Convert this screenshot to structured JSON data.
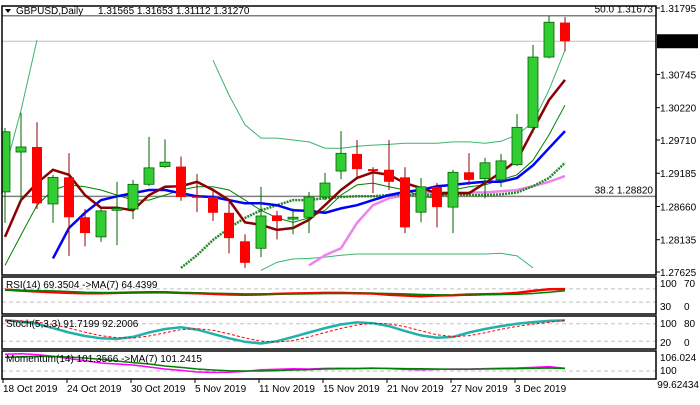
{
  "header": {
    "symbol": "GBPUSD,Daily",
    "ohlc": "1.31565 1.31653 1.31112 1.31270"
  },
  "colors": {
    "bull": "#32CD32",
    "bull_edge": "#006400",
    "bear": "#FF0000",
    "bear_edge": "#8B0000",
    "ma_fast": "#8B0000",
    "ma_mid": "#0000FF",
    "ma_thin": "#008000",
    "ma_slow": "#228B22",
    "ma_slowest": "#EE82EE",
    "bands": "#3CB371",
    "rsi": "#FF0000",
    "rsi_ma": "#008000",
    "stoch_main": "#20B2AA",
    "stoch_signal": "#FF0000",
    "momentum": "#FF00FF",
    "momentum_ma": "#008000"
  },
  "chart_data": [
    {
      "type": "candlestick",
      "title": "GBPUSD,Daily",
      "ylim": [
        1.27625,
        1.31795
      ],
      "y_ticks": [
        "1.31795",
        "1.30745",
        "1.30220",
        "1.29710",
        "1.29185",
        "1.28660",
        "1.28135",
        "1.27625"
      ],
      "current_price": "1.31270",
      "fib_levels": [
        {
          "label": "50.0 1.31673",
          "value": 1.31673
        },
        {
          "label": "38.2 1.28820",
          "value": 1.2882
        }
      ],
      "x_ticks": [
        {
          "bar": 0,
          "label": "18 Oct 2019"
        },
        {
          "bar": 4,
          "label": "24 Oct 2019"
        },
        {
          "bar": 8,
          "label": "30 Oct 2019"
        },
        {
          "bar": 12,
          "label": "5 Nov 2019"
        },
        {
          "bar": 16,
          "label": "11 Nov 2019"
        },
        {
          "bar": 20,
          "label": "15 Nov 2019"
        },
        {
          "bar": 24,
          "label": "21 Nov 2019"
        },
        {
          "bar": 28,
          "label": "27 Nov 2019"
        },
        {
          "bar": 32,
          "label": "3 Dec 2019"
        }
      ],
      "ohlc": [
        [
          1.2889,
          1.299,
          1.284,
          1.2984
        ],
        [
          1.2952,
          1.3014,
          1.2873,
          1.296
        ],
        [
          1.296,
          1.2999,
          1.2862,
          1.2871
        ],
        [
          1.287,
          1.2916,
          1.284,
          1.2912
        ],
        [
          1.2912,
          1.295,
          1.2788,
          1.2849
        ],
        [
          1.2849,
          1.2862,
          1.2803,
          1.2824
        ],
        [
          1.2818,
          1.2862,
          1.281,
          1.2859
        ],
        [
          1.286,
          1.2905,
          1.2805,
          1.2863
        ],
        [
          1.2862,
          1.2908,
          1.2846,
          1.2901
        ],
        [
          1.2901,
          1.2976,
          1.2898,
          1.2927
        ],
        [
          1.2929,
          1.2972,
          1.2927,
          1.2936
        ],
        [
          1.2929,
          1.2945,
          1.2875,
          1.2881
        ],
        [
          1.2882,
          1.2917,
          1.2857,
          1.2881
        ],
        [
          1.2881,
          1.2895,
          1.2843,
          1.2856
        ],
        [
          1.2856,
          1.2876,
          1.2792,
          1.2816
        ],
        [
          1.2811,
          1.2822,
          1.2769,
          1.2777
        ],
        [
          1.28,
          1.2897,
          1.2786,
          1.2851
        ],
        [
          1.2852,
          1.2859,
          1.2814,
          1.2843
        ],
        [
          1.2846,
          1.2863,
          1.2822,
          1.2849
        ],
        [
          1.2849,
          1.2889,
          1.2824,
          1.2881
        ],
        [
          1.2881,
          1.2919,
          1.2876,
          1.2903
        ],
        [
          1.2922,
          1.2985,
          1.2909,
          1.295
        ],
        [
          1.2949,
          1.2971,
          1.2911,
          1.2925
        ],
        [
          1.2925,
          1.2928,
          1.2887,
          1.2922
        ],
        [
          1.2924,
          1.2971,
          1.2892,
          1.2905
        ],
        [
          1.2912,
          1.2928,
          1.2824,
          1.2833
        ],
        [
          1.2857,
          1.2911,
          1.2841,
          1.2897
        ],
        [
          1.2897,
          1.2903,
          1.2833,
          1.2865
        ],
        [
          1.2865,
          1.2924,
          1.2824,
          1.292
        ],
        [
          1.292,
          1.295,
          1.29,
          1.2908
        ],
        [
          1.291,
          1.2943,
          1.2879,
          1.2935
        ],
        [
          1.2908,
          1.2949,
          1.2897,
          1.2938
        ],
        [
          1.2932,
          1.3012,
          1.293,
          1.2991
        ],
        [
          1.2991,
          1.3121,
          1.2982,
          1.3102
        ],
        [
          1.3102,
          1.3167,
          1.31,
          1.3157
        ],
        [
          1.31565,
          1.31653,
          1.31112,
          1.3127
        ]
      ],
      "lines": {
        "ma_fast": [
          1.2818,
          1.2876,
          1.2903,
          1.2924,
          1.2916,
          1.2884,
          1.2864,
          1.2864,
          1.286,
          1.2884,
          1.2897,
          1.2898,
          1.2905,
          1.2892,
          1.2876,
          1.2841,
          1.2837,
          1.2829,
          1.2832,
          1.2845,
          1.2868,
          1.2892,
          1.2911,
          1.292,
          1.2916,
          1.2903,
          1.2895,
          1.2887,
          1.2887,
          1.2887,
          1.2903,
          1.292,
          1.2939,
          1.2987,
          1.3034,
          1.3066
        ],
        "ma_mid": [
          null,
          null,
          null,
          1.2784,
          1.2832,
          1.2856,
          1.2876,
          1.2882,
          1.2887,
          1.2892,
          1.2892,
          1.2887,
          1.2882,
          1.2881,
          1.2876,
          1.2871,
          1.2871,
          1.2868,
          1.286,
          1.2859,
          1.2856,
          1.2863,
          1.2868,
          1.2876,
          1.2884,
          1.2889,
          1.2892,
          1.2898,
          1.29,
          1.2903,
          1.2905,
          1.2905,
          1.2911,
          1.2931,
          1.2958,
          1.2985
        ],
        "ma_thin": [
          1.2773,
          1.2821,
          1.2868,
          1.2892,
          1.29,
          1.2897,
          1.2892,
          1.2884,
          1.2876,
          1.2876,
          1.2884,
          1.2892,
          1.2897,
          1.2897,
          1.2892,
          1.2876,
          1.286,
          1.2848,
          1.2841,
          1.2848,
          1.286,
          1.2884,
          1.29,
          1.2903,
          1.2897,
          1.2892,
          1.2882,
          1.2879,
          1.2892,
          1.2897,
          1.29,
          1.2908,
          1.2916,
          1.2939,
          1.2979,
          1.3026
        ],
        "ma_slow": [
          null,
          null,
          null,
          null,
          null,
          null,
          null,
          null,
          null,
          null,
          null,
          1.2769,
          1.2789,
          1.2813,
          1.2832,
          1.2848,
          1.286,
          1.2868,
          1.2876,
          1.2876,
          1.2879,
          1.2881,
          1.2882,
          1.2882,
          1.2884,
          1.2884,
          1.2884,
          1.2884,
          1.2884,
          1.2884,
          1.2884,
          1.2885,
          1.2888,
          1.2898,
          1.2911,
          1.2935
        ],
        "ma_slowest": [
          null,
          null,
          null,
          null,
          null,
          null,
          null,
          null,
          null,
          null,
          null,
          null,
          null,
          null,
          null,
          null,
          null,
          null,
          null,
          1.2773,
          1.2789,
          1.28,
          1.284,
          1.2868,
          1.2879,
          1.2884,
          1.2887,
          1.2888,
          1.2888,
          1.2888,
          1.2888,
          1.289,
          1.2892,
          1.2898,
          1.2905,
          1.2914
        ],
        "band_upper": [
          1.2924,
          1.3018,
          1.3129,
          null,
          null,
          null,
          null,
          null,
          null,
          null,
          null,
          null,
          null,
          1.3097,
          1.3042,
          1.2995,
          1.2974,
          1.2974,
          1.2971,
          1.2968,
          1.2958,
          1.2958,
          1.2961,
          1.2963,
          1.2964,
          1.2966,
          1.2966,
          1.2966,
          1.2968,
          1.2968,
          1.2966,
          1.2969,
          1.2979,
          1.2999,
          1.305,
          1.3113
        ],
        "band_lower": [
          null,
          null,
          null,
          null,
          null,
          null,
          null,
          null,
          null,
          null,
          null,
          null,
          null,
          null,
          null,
          null,
          1.2765,
          1.2778,
          1.2783,
          1.2784,
          1.2786,
          1.2789,
          1.2791,
          1.2791,
          1.2791,
          1.2791,
          1.2791,
          1.2791,
          1.2791,
          1.2791,
          1.2791,
          1.2792,
          1.2788,
          1.2769,
          null,
          null
        ]
      }
    },
    {
      "type": "line",
      "title": "RSI(14) 69.3504  ->MA(7) 64.4399",
      "ylim": [
        0,
        100
      ],
      "y_ticks": [
        "100",
        "70",
        "30",
        "0"
      ],
      "levels": [
        70,
        30
      ],
      "series": [
        {
          "name": "RSI(14)",
          "values": [
            68,
            65,
            62,
            60,
            58,
            57,
            57,
            58,
            59,
            60,
            60,
            58,
            57,
            55,
            53,
            52,
            53,
            55,
            56,
            57,
            58,
            58,
            57,
            56,
            52,
            50,
            48,
            50,
            51,
            53,
            54,
            55,
            58,
            64,
            69,
            69.35
          ]
        },
        {
          "name": "MA(7)",
          "values": [
            66,
            66,
            65,
            64,
            62,
            60,
            59,
            58,
            58,
            58,
            58,
            58,
            58,
            57,
            56,
            55,
            55,
            55,
            55,
            55,
            56,
            56,
            57,
            57,
            56,
            55,
            53,
            52,
            51,
            51,
            52,
            53,
            54,
            56,
            60,
            64.44
          ]
        }
      ]
    },
    {
      "type": "line",
      "title": "Stoch(5,3,3) 91.7199 92.2006",
      "ylim": [
        0,
        100
      ],
      "y_ticks": [
        "100",
        "80",
        "20",
        "0"
      ],
      "levels": [
        80,
        20
      ],
      "series": [
        {
          "name": "main",
          "values": [
            92,
            88,
            80,
            65,
            50,
            38,
            30,
            28,
            35,
            50,
            62,
            68,
            60,
            45,
            30,
            18,
            12,
            20,
            35,
            50,
            65,
            78,
            85,
            82,
            72,
            55,
            40,
            32,
            35,
            50,
            62,
            72,
            80,
            86,
            90,
            91.72
          ]
        },
        {
          "name": "signal",
          "values": [
            90,
            90,
            86,
            78,
            65,
            51,
            39,
            32,
            31,
            38,
            49,
            60,
            63,
            58,
            45,
            31,
            20,
            17,
            22,
            35,
            50,
            64,
            76,
            82,
            80,
            70,
            56,
            42,
            36,
            39,
            49,
            61,
            71,
            79,
            85,
            92.2
          ]
        }
      ]
    },
    {
      "type": "line",
      "title": "Momentum(14) 101.3566  ->MA(7) 101.2415",
      "ylim": [
        97,
        109
      ],
      "y_ticks": [
        "106.024",
        "100",
        "99.62434"
      ],
      "levels": [
        100
      ],
      "series": [
        {
          "name": "Momentum(14)",
          "values": [
            108.4,
            108.6,
            108.2,
            107.4,
            106.2,
            105.2,
            104.0,
            103.5,
            103.0,
            102.0,
            101.0,
            100.3,
            99.5,
            99.3,
            99.4,
            99.8,
            100.6,
            100.9,
            101.1,
            101.0,
            101.3,
            101.4,
            101.3,
            101.5,
            101.2,
            100.8,
            100.6,
            100.8,
            101.0,
            101.0,
            101.2,
            101.4,
            101.5,
            101.8,
            102.2,
            101.36
          ]
        },
        {
          "name": "MA(7)",
          "values": [
            106.8,
            107.1,
            107.3,
            107.3,
            107.0,
            106.5,
            105.8,
            105.0,
            104.2,
            103.5,
            102.5,
            101.8,
            101.0,
            100.5,
            100.1,
            100.0,
            100.0,
            100.2,
            100.5,
            100.7,
            101.0,
            101.1,
            101.2,
            101.3,
            101.3,
            101.2,
            101.1,
            101.0,
            100.9,
            100.9,
            101.0,
            101.1,
            101.2,
            101.3,
            101.5,
            101.24
          ]
        }
      ]
    }
  ]
}
